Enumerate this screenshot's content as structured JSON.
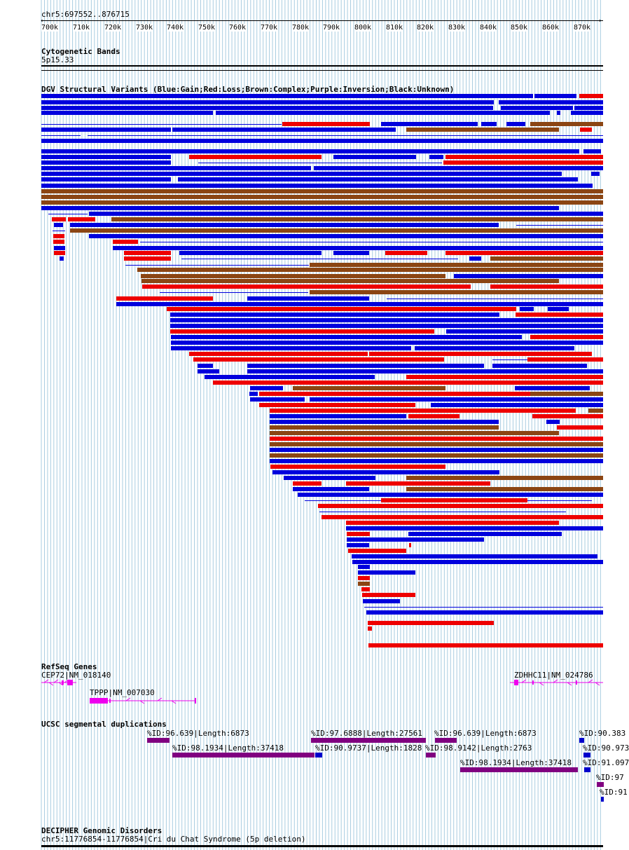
{
  "header": {
    "position": "chr5:697552..876715",
    "ticks": [
      "700k",
      "710k",
      "720k",
      "730k",
      "740k",
      "750k",
      "760k",
      "770k",
      "780k",
      "790k",
      "800k",
      "810k",
      "820k",
      "830k",
      "840k",
      "850k",
      "860k",
      "870k"
    ]
  },
  "cyto": {
    "title": "Cytogenetic Bands",
    "band": "5p15.33"
  },
  "dgv": {
    "title": "DGV Structural Variants (Blue:Gain;Red:Loss;Brown:Complex;Purple:Inversion;Black:Unknown)"
  },
  "refseq": {
    "title": "RefSeq Genes",
    "genes": [
      {
        "label": "CEP72|NM_018140"
      },
      {
        "label": "TPPP|NM_007030"
      },
      {
        "label": "ZDHHC11|NM_024786"
      }
    ]
  },
  "segdup": {
    "title": "UCSC segmental duplications",
    "items": [
      {
        "label": "%ID:96.639|Length:6873"
      },
      {
        "label": "%ID:97.6888|Length:27561"
      },
      {
        "label": "%ID:96.639|Length:6873"
      },
      {
        "label": "%ID:90.383"
      },
      {
        "label": "%ID:98.1934|Length:37418"
      },
      {
        "label": "%ID:90.9737|Length:1828"
      },
      {
        "label": "%ID:98.9142|Length:2763"
      },
      {
        "label": "%ID:90.973"
      },
      {
        "label": "%ID:98.1934|Length:37418"
      },
      {
        "label": "%ID:91.097"
      },
      {
        "label": "%ID:97"
      },
      {
        "label": "%ID:91"
      }
    ]
  },
  "decipher": {
    "title": "DECIPHER Genomic Disorders",
    "item": "chr5:11776854-11776854|Cri du Chat Syndrome (5p deletion)"
  },
  "colors": {
    "gain": "#0000dd",
    "loss": "#ee0000",
    "complex": "#8b4513",
    "gene": "#ee00ee",
    "segdup_purple": "#800080",
    "segdup_blue": "#0000cc",
    "grid": "#a8cce0"
  }
}
